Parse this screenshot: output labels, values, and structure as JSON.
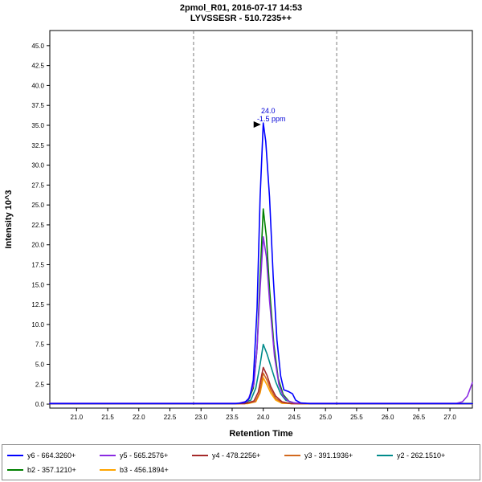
{
  "header": {
    "title": "2pmol_R01, 2016-07-17 14:53",
    "subtitle": "LYVSSESR - 510.7235++"
  },
  "chart_data": {
    "type": "line",
    "title": "2pmol_R01, 2016-07-17 14:53",
    "subtitle": "LYVSSESR - 510.7235++",
    "xlabel": "Retention Time",
    "ylabel": "Intensity 10^3",
    "xlim": [
      20.57,
      27.36
    ],
    "ylim": [
      -0.5,
      46.9
    ],
    "xticks": [
      21.0,
      21.5,
      22.0,
      22.5,
      23.0,
      23.5,
      24.0,
      24.5,
      25.0,
      25.5,
      26.0,
      26.5,
      27.0
    ],
    "yticks": [
      0.0,
      2.5,
      5.0,
      7.5,
      10.0,
      12.5,
      15.0,
      17.5,
      20.0,
      22.5,
      25.0,
      27.5,
      30.0,
      32.5,
      35.0,
      37.5,
      40.0,
      42.5,
      45.0
    ],
    "grid": false,
    "legend_position": "bottom",
    "integration_boundaries": [
      22.88,
      25.18
    ],
    "peak_annotation": {
      "x": 24.0,
      "y": 35.3,
      "label": "24.0",
      "sublabel": "-1.5 ppm",
      "color": "#0000d8"
    },
    "series": [
      {
        "name": "y6 - 664.3260+",
        "color": "#0000ff",
        "points": [
          [
            20.57,
            0.05
          ],
          [
            23.55,
            0.05
          ],
          [
            23.7,
            0.2
          ],
          [
            23.78,
            0.8
          ],
          [
            23.84,
            3
          ],
          [
            23.9,
            12
          ],
          [
            23.95,
            26
          ],
          [
            24.0,
            35.3
          ],
          [
            24.04,
            33
          ],
          [
            24.1,
            26
          ],
          [
            24.16,
            16
          ],
          [
            24.22,
            8
          ],
          [
            24.28,
            3.5
          ],
          [
            24.33,
            1.8
          ],
          [
            24.4,
            1.6
          ],
          [
            24.47,
            1.3
          ],
          [
            24.52,
            0.5
          ],
          [
            24.6,
            0.15
          ],
          [
            24.75,
            0.05
          ],
          [
            27.36,
            0.05
          ]
        ]
      },
      {
        "name": "y5 - 565.2576+",
        "color": "#8a2be2",
        "points": [
          [
            20.57,
            0.1
          ],
          [
            23.6,
            0.1
          ],
          [
            23.75,
            0.4
          ],
          [
            23.85,
            2.5
          ],
          [
            23.9,
            7
          ],
          [
            23.95,
            14.5
          ],
          [
            24.0,
            21
          ],
          [
            24.05,
            18.5
          ],
          [
            24.1,
            13
          ],
          [
            24.18,
            6
          ],
          [
            24.25,
            2.5
          ],
          [
            24.32,
            1
          ],
          [
            24.4,
            0.4
          ],
          [
            24.5,
            0.15
          ],
          [
            24.7,
            0.1
          ],
          [
            27.1,
            0.1
          ],
          [
            27.2,
            0.3
          ],
          [
            27.28,
            1.0
          ],
          [
            27.36,
            2.7
          ]
        ]
      },
      {
        "name": "y4 - 478.2256+",
        "color": "#a52a2a",
        "points": [
          [
            20.57,
            0.05
          ],
          [
            23.7,
            0.05
          ],
          [
            23.85,
            0.4
          ],
          [
            23.92,
            1.5
          ],
          [
            24.0,
            4.6
          ],
          [
            24.06,
            3.6
          ],
          [
            24.12,
            2.2
          ],
          [
            24.2,
            1.0
          ],
          [
            24.3,
            0.3
          ],
          [
            24.45,
            0.05
          ],
          [
            27.36,
            0.05
          ]
        ]
      },
      {
        "name": "y3 - 391.1936+",
        "color": "#d2691e",
        "points": [
          [
            20.57,
            0.05
          ],
          [
            23.7,
            0.05
          ],
          [
            23.87,
            0.3
          ],
          [
            23.94,
            1.4
          ],
          [
            24.0,
            3.9
          ],
          [
            24.06,
            3.0
          ],
          [
            24.12,
            1.8
          ],
          [
            24.2,
            0.7
          ],
          [
            24.3,
            0.2
          ],
          [
            24.45,
            0.05
          ],
          [
            27.36,
            0.05
          ]
        ]
      },
      {
        "name": "y2 - 262.1510+",
        "color": "#008b8b",
        "points": [
          [
            20.57,
            0.08
          ],
          [
            23.65,
            0.08
          ],
          [
            23.8,
            0.5
          ],
          [
            23.88,
            2
          ],
          [
            23.95,
            5
          ],
          [
            24.0,
            7.5
          ],
          [
            24.06,
            6.3
          ],
          [
            24.12,
            4.8
          ],
          [
            24.2,
            2.8
          ],
          [
            24.28,
            1.3
          ],
          [
            24.36,
            0.5
          ],
          [
            24.5,
            0.15
          ],
          [
            24.7,
            0.08
          ],
          [
            27.36,
            0.08
          ]
        ]
      },
      {
        "name": "b2 - 357.1210+",
        "color": "#008000",
        "points": [
          [
            20.57,
            0.05
          ],
          [
            23.6,
            0.05
          ],
          [
            23.75,
            0.3
          ],
          [
            23.84,
            2
          ],
          [
            23.9,
            7
          ],
          [
            23.95,
            16
          ],
          [
            24.0,
            24.5
          ],
          [
            24.05,
            21
          ],
          [
            24.1,
            14.5
          ],
          [
            24.17,
            7.5
          ],
          [
            24.24,
            3.2
          ],
          [
            24.32,
            1.2
          ],
          [
            24.42,
            0.3
          ],
          [
            24.55,
            0.05
          ],
          [
            27.36,
            0.05
          ]
        ]
      },
      {
        "name": "b3 - 456.1894+",
        "color": "#ffa500",
        "points": [
          [
            20.57,
            0.05
          ],
          [
            23.75,
            0.05
          ],
          [
            23.88,
            0.3
          ],
          [
            23.95,
            1.4
          ],
          [
            24.0,
            3.3
          ],
          [
            24.06,
            2.4
          ],
          [
            24.12,
            1.4
          ],
          [
            24.2,
            0.5
          ],
          [
            24.3,
            0.1
          ],
          [
            24.5,
            0.05
          ],
          [
            27.36,
            0.05
          ]
        ]
      }
    ]
  }
}
